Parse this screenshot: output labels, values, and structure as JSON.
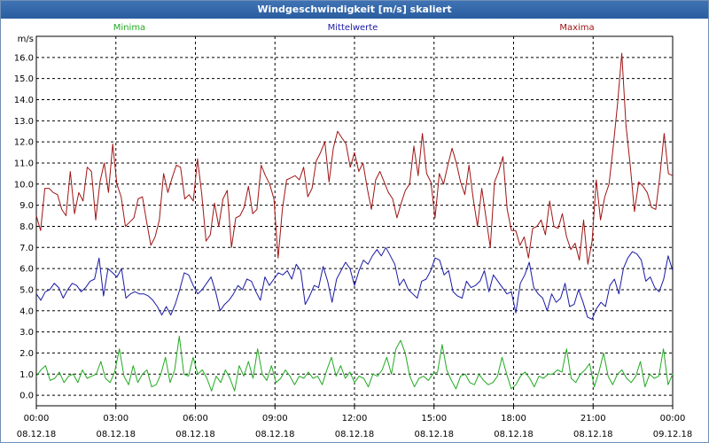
{
  "window": {
    "title": "Windgeschwindigkeit [m/s] skaliert"
  },
  "chart_data": {
    "type": "line",
    "title": "Windgeschwindigkeit [m/s] skaliert",
    "ylabel": "m/s",
    "ylim": [
      -0.5,
      17.0
    ],
    "yticks": [
      "0.0",
      "1.0",
      "2.0",
      "3.0",
      "4.0",
      "5.0",
      "6.0",
      "7.0",
      "8.0",
      "9.0",
      "10.0",
      "11.0",
      "12.0",
      "13.0",
      "14.0",
      "15.0",
      "16.0"
    ],
    "xticks": [
      {
        "time": "00:00",
        "date": "08.12.18"
      },
      {
        "time": "03:00",
        "date": "08.12.18"
      },
      {
        "time": "06:00",
        "date": "08.12.18"
      },
      {
        "time": "09:00",
        "date": "08.12.18"
      },
      {
        "time": "12:00",
        "date": "08.12.18"
      },
      {
        "time": "15:00",
        "date": "08.12.18"
      },
      {
        "time": "18:00",
        "date": "08.12.18"
      },
      {
        "time": "21:00",
        "date": "08.12.18"
      },
      {
        "time": "00:00",
        "date": "09.12.18"
      }
    ],
    "x_range_hours": [
      0,
      24
    ],
    "grid": true,
    "series": [
      {
        "name": "Minima",
        "color": "#22aa22",
        "values": [
          0.9,
          1.2,
          1.4,
          0.7,
          0.8,
          1.1,
          0.6,
          0.9,
          1.0,
          0.6,
          1.2,
          0.8,
          0.9,
          1.0,
          1.6,
          0.8,
          0.6,
          1.1,
          2.2,
          0.9,
          0.5,
          1.4,
          0.6,
          1.0,
          1.2,
          0.4,
          0.5,
          1.0,
          1.8,
          0.6,
          1.2,
          2.8,
          1.0,
          0.9,
          1.8,
          1.0,
          1.2,
          0.8,
          0.2,
          0.9,
          0.6,
          1.2,
          0.8,
          0.2,
          1.4,
          0.9,
          1.6,
          0.8,
          2.2,
          1.0,
          0.7,
          1.4,
          0.6,
          0.8,
          1.2,
          0.9,
          0.5,
          0.9,
          0.8,
          1.1,
          0.8,
          0.9,
          0.5,
          1.2,
          1.8,
          0.9,
          1.4,
          0.8,
          1.1,
          0.6,
          0.9,
          0.8,
          0.4,
          1.0,
          0.9,
          1.2,
          1.8,
          1.0,
          2.2,
          2.6,
          2.0,
          0.9,
          0.4,
          0.8,
          0.9,
          0.7,
          1.0,
          1.1,
          2.4,
          1.2,
          0.7,
          0.3,
          0.9,
          1.0,
          0.6,
          0.5,
          1.0,
          0.7,
          0.5,
          0.6,
          0.9,
          1.8,
          1.0,
          0.3,
          0.5,
          0.9,
          1.1,
          0.8,
          0.4,
          0.9,
          0.8,
          1.0,
          1.0,
          1.2,
          1.1,
          2.2,
          0.8,
          0.6,
          1.0,
          1.2,
          1.5,
          0.4,
          1.1,
          2.0,
          0.9,
          0.5,
          1.0,
          1.2,
          0.8,
          0.6,
          0.9,
          1.6,
          0.4,
          1.0,
          0.8,
          0.9,
          2.2,
          0.5,
          1.0
        ]
      },
      {
        "name": "Mittelwerte",
        "color": "#1a1aa6",
        "values": [
          4.8,
          4.5,
          4.9,
          5.0,
          5.3,
          5.1,
          4.6,
          5.0,
          5.3,
          5.2,
          4.9,
          5.1,
          5.4,
          5.5,
          6.5,
          4.7,
          6.0,
          5.8,
          5.6,
          6.0,
          4.6,
          4.8,
          4.9,
          4.8,
          4.8,
          4.7,
          4.5,
          4.2,
          3.8,
          4.2,
          3.8,
          4.3,
          5.0,
          5.8,
          5.7,
          5.2,
          4.8,
          5.0,
          5.3,
          5.6,
          4.9,
          4.0,
          4.3,
          4.5,
          4.8,
          5.2,
          5.0,
          5.5,
          5.4,
          4.9,
          4.5,
          5.6,
          5.2,
          5.5,
          5.8,
          5.7,
          5.9,
          5.5,
          6.2,
          5.9,
          4.3,
          4.7,
          5.2,
          5.1,
          6.1,
          5.4,
          4.4,
          5.5,
          5.9,
          6.3,
          6.0,
          5.2,
          5.9,
          6.4,
          6.2,
          6.6,
          6.9,
          6.6,
          7.0,
          6.6,
          6.2,
          5.2,
          5.5,
          5.0,
          4.8,
          4.6,
          5.4,
          5.5,
          5.9,
          6.5,
          6.4,
          5.7,
          5.9,
          4.9,
          4.7,
          4.6,
          5.4,
          5.1,
          5.2,
          5.4,
          5.9,
          4.9,
          5.7,
          5.4,
          5.1,
          4.8,
          4.9,
          3.9,
          5.3,
          5.7,
          6.3,
          5.1,
          4.8,
          4.6,
          4.0,
          4.8,
          4.4,
          4.6,
          5.3,
          4.2,
          4.3,
          5.0,
          4.4,
          3.7,
          3.6,
          4.1,
          4.4,
          4.2,
          5.2,
          5.5,
          4.8,
          6.0,
          6.5,
          6.8,
          6.7,
          6.4,
          5.4,
          5.6,
          5.1,
          4.9,
          5.5,
          6.6,
          5.9
        ]
      },
      {
        "name": "Maxima",
        "color": "#a01414",
        "values": [
          8.5,
          7.8,
          9.8,
          9.8,
          9.6,
          9.5,
          8.8,
          8.5,
          10.6,
          8.6,
          9.6,
          9.2,
          10.8,
          10.6,
          8.3,
          10.1,
          11.0,
          9.6,
          11.9,
          10.0,
          9.4,
          8.0,
          8.2,
          8.4,
          9.3,
          9.4,
          8.2,
          7.1,
          7.5,
          8.3,
          10.5,
          9.6,
          10.3,
          10.9,
          10.8,
          9.3,
          9.5,
          9.2,
          11.2,
          9.5,
          7.3,
          7.6,
          9.1,
          8.0,
          9.3,
          9.7,
          7.0,
          8.4,
          8.5,
          8.9,
          9.9,
          8.6,
          8.8,
          10.9,
          10.4,
          10.0,
          9.3,
          6.5,
          8.8,
          10.2,
          10.3,
          10.4,
          10.2,
          10.8,
          9.4,
          9.8,
          11.1,
          11.5,
          12.0,
          10.1,
          11.7,
          12.5,
          12.2,
          11.9,
          10.8,
          11.5,
          10.6,
          11.0,
          9.8,
          8.8,
          10.2,
          10.6,
          10.1,
          9.6,
          9.3,
          8.4,
          9.1,
          9.7,
          10.0,
          11.8,
          10.4,
          12.4,
          10.5,
          10.1,
          8.4,
          10.5,
          10.0,
          10.9,
          11.7,
          11.0,
          10.1,
          9.5,
          10.9,
          9.3,
          8.0,
          9.8,
          8.4,
          7.0,
          10.1,
          10.6,
          11.3,
          8.8,
          7.8,
          7.8,
          7.1,
          7.5,
          6.5,
          7.9,
          8.0,
          8.3,
          7.6,
          9.2,
          8.0,
          7.9,
          8.6,
          7.5,
          6.9,
          7.2,
          6.4,
          8.3,
          6.2,
          7.3,
          10.2,
          8.3,
          9.4,
          10.0,
          11.8,
          13.8,
          16.2,
          12.8,
          10.9,
          8.7,
          10.1,
          9.9,
          9.6,
          8.9,
          8.8,
          10.4,
          12.4,
          10.5,
          10.4
        ]
      }
    ]
  }
}
